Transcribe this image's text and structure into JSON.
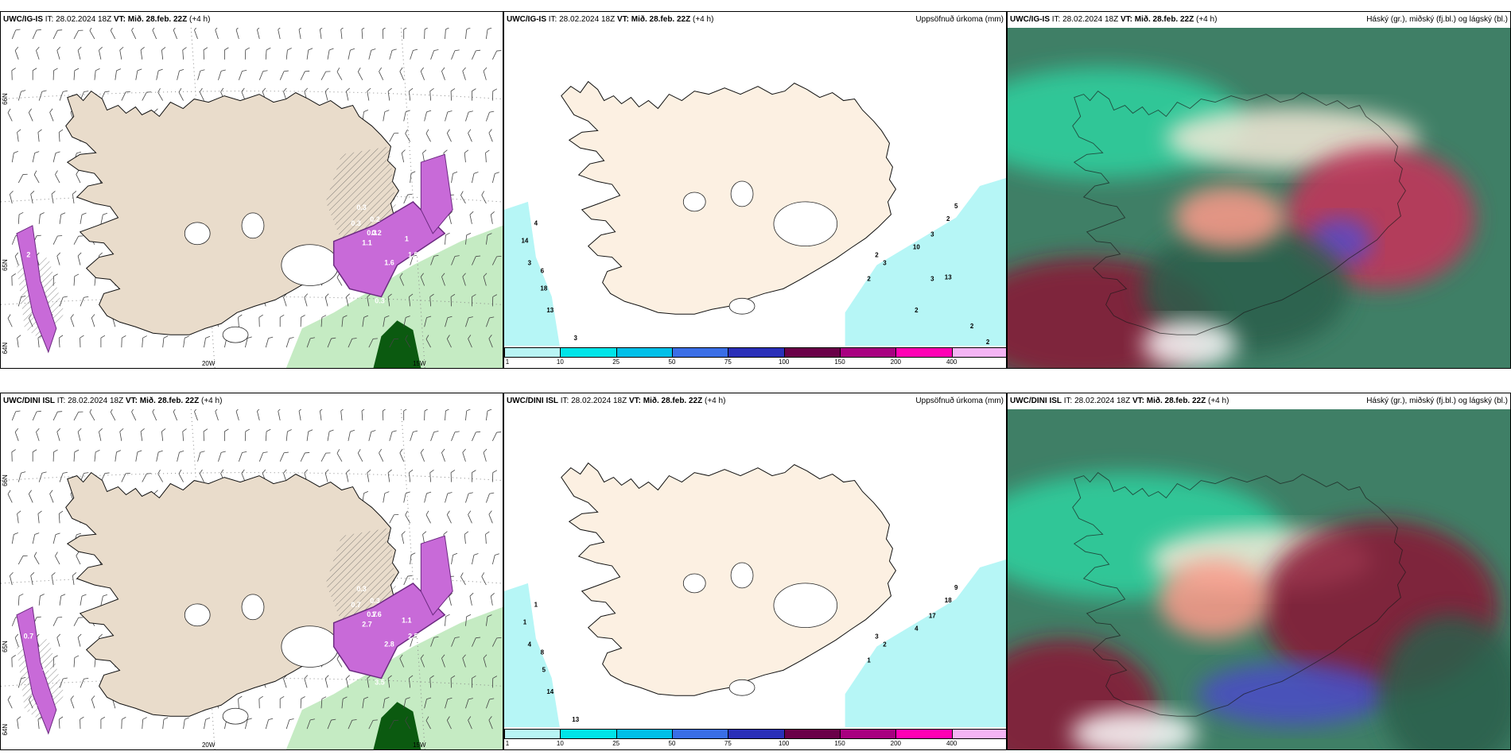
{
  "header": {
    "it_label": "IT:",
    "init_time": "28.02.2024 18Z",
    "vt_label": "VT:",
    "valid_time": "Mið. 28.feb. 22Z",
    "lead": "(+4 h)"
  },
  "rows": [
    {
      "model": "UWC/IG-IS",
      "panels": {
        "wind": {
          "lat_labels": [
            "66N",
            "65N",
            "64N"
          ],
          "lon_labels": [
            "20W",
            "15W"
          ],
          "precip_values": [
            "0.3",
            "0.2",
            "0.3",
            "0.3",
            "1",
            "1.9",
            "1.6",
            "0.3",
            "1.1",
            "0.2",
            "2"
          ]
        },
        "precip": {
          "title": "Uppsöfnuð úrkoma (mm)",
          "values": [
            "4",
            "14",
            "3",
            "6",
            "18",
            "13",
            "3",
            "3",
            "2",
            "2",
            "5",
            "2",
            "3",
            "10",
            "13",
            "3",
            "2",
            "2",
            "2"
          ]
        },
        "cloud": {
          "title": "Háský (gr.), miðský (fj.bl.) og lágský (bl.)"
        }
      }
    },
    {
      "model": "UWC/DINI ISL",
      "panels": {
        "wind": {
          "lat_labels": [
            "66N",
            "65N",
            "64N"
          ],
          "lon_labels": [
            "20W",
            "15W"
          ],
          "precip_values": [
            "0.3",
            "0.3",
            "0.7",
            "0.7",
            "1.1",
            "2.5",
            "2.8",
            "3.5",
            "2.7",
            "1.6",
            "0.7",
            "1.7",
            "4.3",
            "3.0"
          ]
        },
        "precip": {
          "title": "Uppsöfnuð úrkoma (mm)",
          "values": [
            "1",
            "1",
            "4",
            "8",
            "5",
            "14",
            "13",
            "2",
            "1",
            "3",
            "9",
            "18",
            "17",
            "4"
          ]
        },
        "cloud": {
          "title": "Háský (gr.), miðský (fj.bl.) og lágský (bl.)"
        }
      }
    }
  ],
  "colorbar": {
    "ticks": [
      "1",
      "10",
      "25",
      "50",
      "75",
      "100",
      "150",
      "200",
      "400"
    ],
    "colors": [
      "#b8f4f4",
      "#00e4e8",
      "#00bfe8",
      "#3a6ee6",
      "#2a2fb8",
      "#6a0048",
      "#a80080",
      "#ff00b4",
      "#f4b4f4"
    ]
  },
  "colors": {
    "land": "#e9dccb",
    "land_light": "#fcf0e2",
    "sea_precip": "#b6f6f6",
    "precip_purple": "#c86ad8",
    "precip_dark": "#6b2a80",
    "green_light": "#bfe9bd",
    "green_dark": "#0b5a10"
  }
}
